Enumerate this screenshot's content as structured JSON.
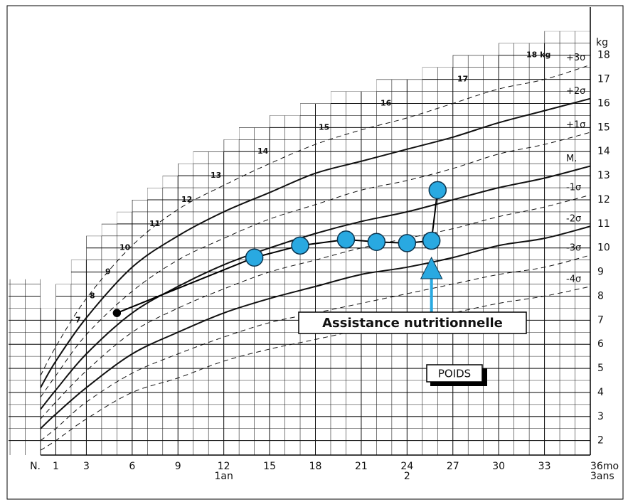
{
  "chart_data": {
    "type": "line",
    "y_label": "kg",
    "xlim": [
      0,
      36
    ],
    "ylim": [
      1.4,
      20
    ],
    "xticks": [
      {
        "value": 0,
        "label": "N."
      },
      1,
      3,
      6,
      9,
      12,
      15,
      18,
      21,
      24,
      27,
      30,
      33,
      {
        "value": 36,
        "label": "36mo"
      }
    ],
    "x_sublabels": [
      {
        "value": 12,
        "label": "1an"
      },
      {
        "value": 24,
        "label": "2"
      },
      {
        "value": 36,
        "label": "3ans"
      }
    ],
    "yticks": [
      2,
      3,
      4,
      5,
      6,
      7,
      8,
      9,
      10,
      11,
      12,
      13,
      14,
      15,
      16,
      17,
      18
    ],
    "weight_marks": [
      {
        "value": 7,
        "label": "7"
      },
      {
        "value": 8,
        "label": "8"
      },
      {
        "value": 9,
        "label": "9"
      },
      {
        "value": 10,
        "label": "10"
      },
      {
        "value": 11,
        "label": "11"
      },
      {
        "value": 12,
        "label": "12"
      },
      {
        "value": 13,
        "label": "13"
      },
      {
        "value": 14,
        "label": "14"
      },
      {
        "value": 15,
        "label": "15"
      },
      {
        "value": 16,
        "label": "16"
      },
      {
        "value": 17,
        "label": "17"
      },
      {
        "value": 18,
        "label": "18 kg"
      }
    ],
    "minor_grid": true,
    "series": [
      {
        "name": "+3σ",
        "color": "#111111",
        "dashed": true,
        "x": [
          0,
          1,
          3,
          6,
          9,
          12,
          15,
          18,
          21,
          24,
          27,
          30,
          33,
          36
        ],
        "values": [
          4.7,
          5.9,
          7.9,
          10.1,
          11.6,
          12.6,
          13.5,
          14.3,
          14.9,
          15.4,
          16.0,
          16.6,
          17.0,
          17.6
        ]
      },
      {
        "name": "+2σ",
        "color": "#111111",
        "dashed": false,
        "x": [
          0,
          1,
          3,
          6,
          9,
          12,
          15,
          18,
          21,
          24,
          27,
          30,
          33,
          36
        ],
        "values": [
          4.2,
          5.3,
          7.1,
          9.2,
          10.5,
          11.5,
          12.3,
          13.1,
          13.6,
          14.1,
          14.6,
          15.2,
          15.7,
          16.2
        ]
      },
      {
        "name": "+1σ",
        "color": "#111111",
        "dashed": true,
        "x": [
          0,
          1,
          3,
          6,
          9,
          12,
          15,
          18,
          21,
          24,
          27,
          30,
          33,
          36
        ],
        "values": [
          3.8,
          4.7,
          6.4,
          8.2,
          9.5,
          10.4,
          11.2,
          11.8,
          12.4,
          12.8,
          13.3,
          13.9,
          14.3,
          14.8
        ]
      },
      {
        "name": "M.",
        "color": "#111111",
        "dashed": false,
        "x": [
          0,
          1,
          3,
          6,
          9,
          12,
          15,
          18,
          21,
          24,
          27,
          30,
          33,
          36
        ],
        "values": [
          3.3,
          4.1,
          5.6,
          7.3,
          8.4,
          9.3,
          10.0,
          10.6,
          11.1,
          11.5,
          12.0,
          12.5,
          12.9,
          13.4
        ]
      },
      {
        "name": "-1σ",
        "color": "#111111",
        "dashed": true,
        "x": [
          0,
          1,
          3,
          6,
          9,
          12,
          15,
          18,
          21,
          24,
          27,
          30,
          33,
          36
        ],
        "values": [
          2.9,
          3.6,
          4.9,
          6.5,
          7.5,
          8.3,
          9.0,
          9.5,
          10.0,
          10.4,
          10.8,
          11.3,
          11.7,
          12.2
        ]
      },
      {
        "name": "-2σ",
        "color": "#111111",
        "dashed": false,
        "x": [
          0,
          1,
          3,
          6,
          9,
          12,
          15,
          18,
          21,
          24,
          27,
          30,
          33,
          36
        ],
        "values": [
          2.5,
          3.1,
          4.2,
          5.6,
          6.5,
          7.3,
          7.9,
          8.4,
          8.9,
          9.2,
          9.6,
          10.1,
          10.4,
          10.9
        ]
      },
      {
        "name": "-3σ",
        "color": "#111111",
        "dashed": true,
        "x": [
          0,
          1,
          3,
          6,
          9,
          12,
          15,
          18,
          21,
          24,
          27,
          30,
          33,
          36
        ],
        "values": [
          2.0,
          2.5,
          3.6,
          4.8,
          5.6,
          6.3,
          6.9,
          7.3,
          7.7,
          8.1,
          8.5,
          8.9,
          9.2,
          9.7
        ]
      },
      {
        "name": "-4σ",
        "color": "#111111",
        "dashed": true,
        "x": [
          0,
          1,
          3,
          6,
          9,
          12,
          15,
          18,
          21,
          24,
          27,
          30,
          33,
          36
        ],
        "values": [
          1.6,
          2.0,
          2.9,
          4.0,
          4.6,
          5.3,
          5.8,
          6.2,
          6.6,
          6.9,
          7.3,
          7.7,
          8.0,
          8.4
        ]
      },
      {
        "color": "#29a9e1",
        "point_colors": [
          "#000000",
          "#29a9e1",
          "#29a9e1",
          "#29a9e1",
          "#29a9e1",
          "#29a9e1",
          "#29a9e1",
          "#29a9e1"
        ],
        "x": [
          5,
          14,
          17,
          20,
          22,
          24,
          25.6,
          26
        ],
        "values": [
          7.3,
          9.6,
          10.1,
          10.35,
          10.25,
          10.2,
          10.3,
          12.4
        ]
      }
    ],
    "annotations": [
      {
        "text": "Assistance nutritionnelle",
        "x": 25.6
      },
      {
        "text": "POIDS"
      }
    ]
  }
}
